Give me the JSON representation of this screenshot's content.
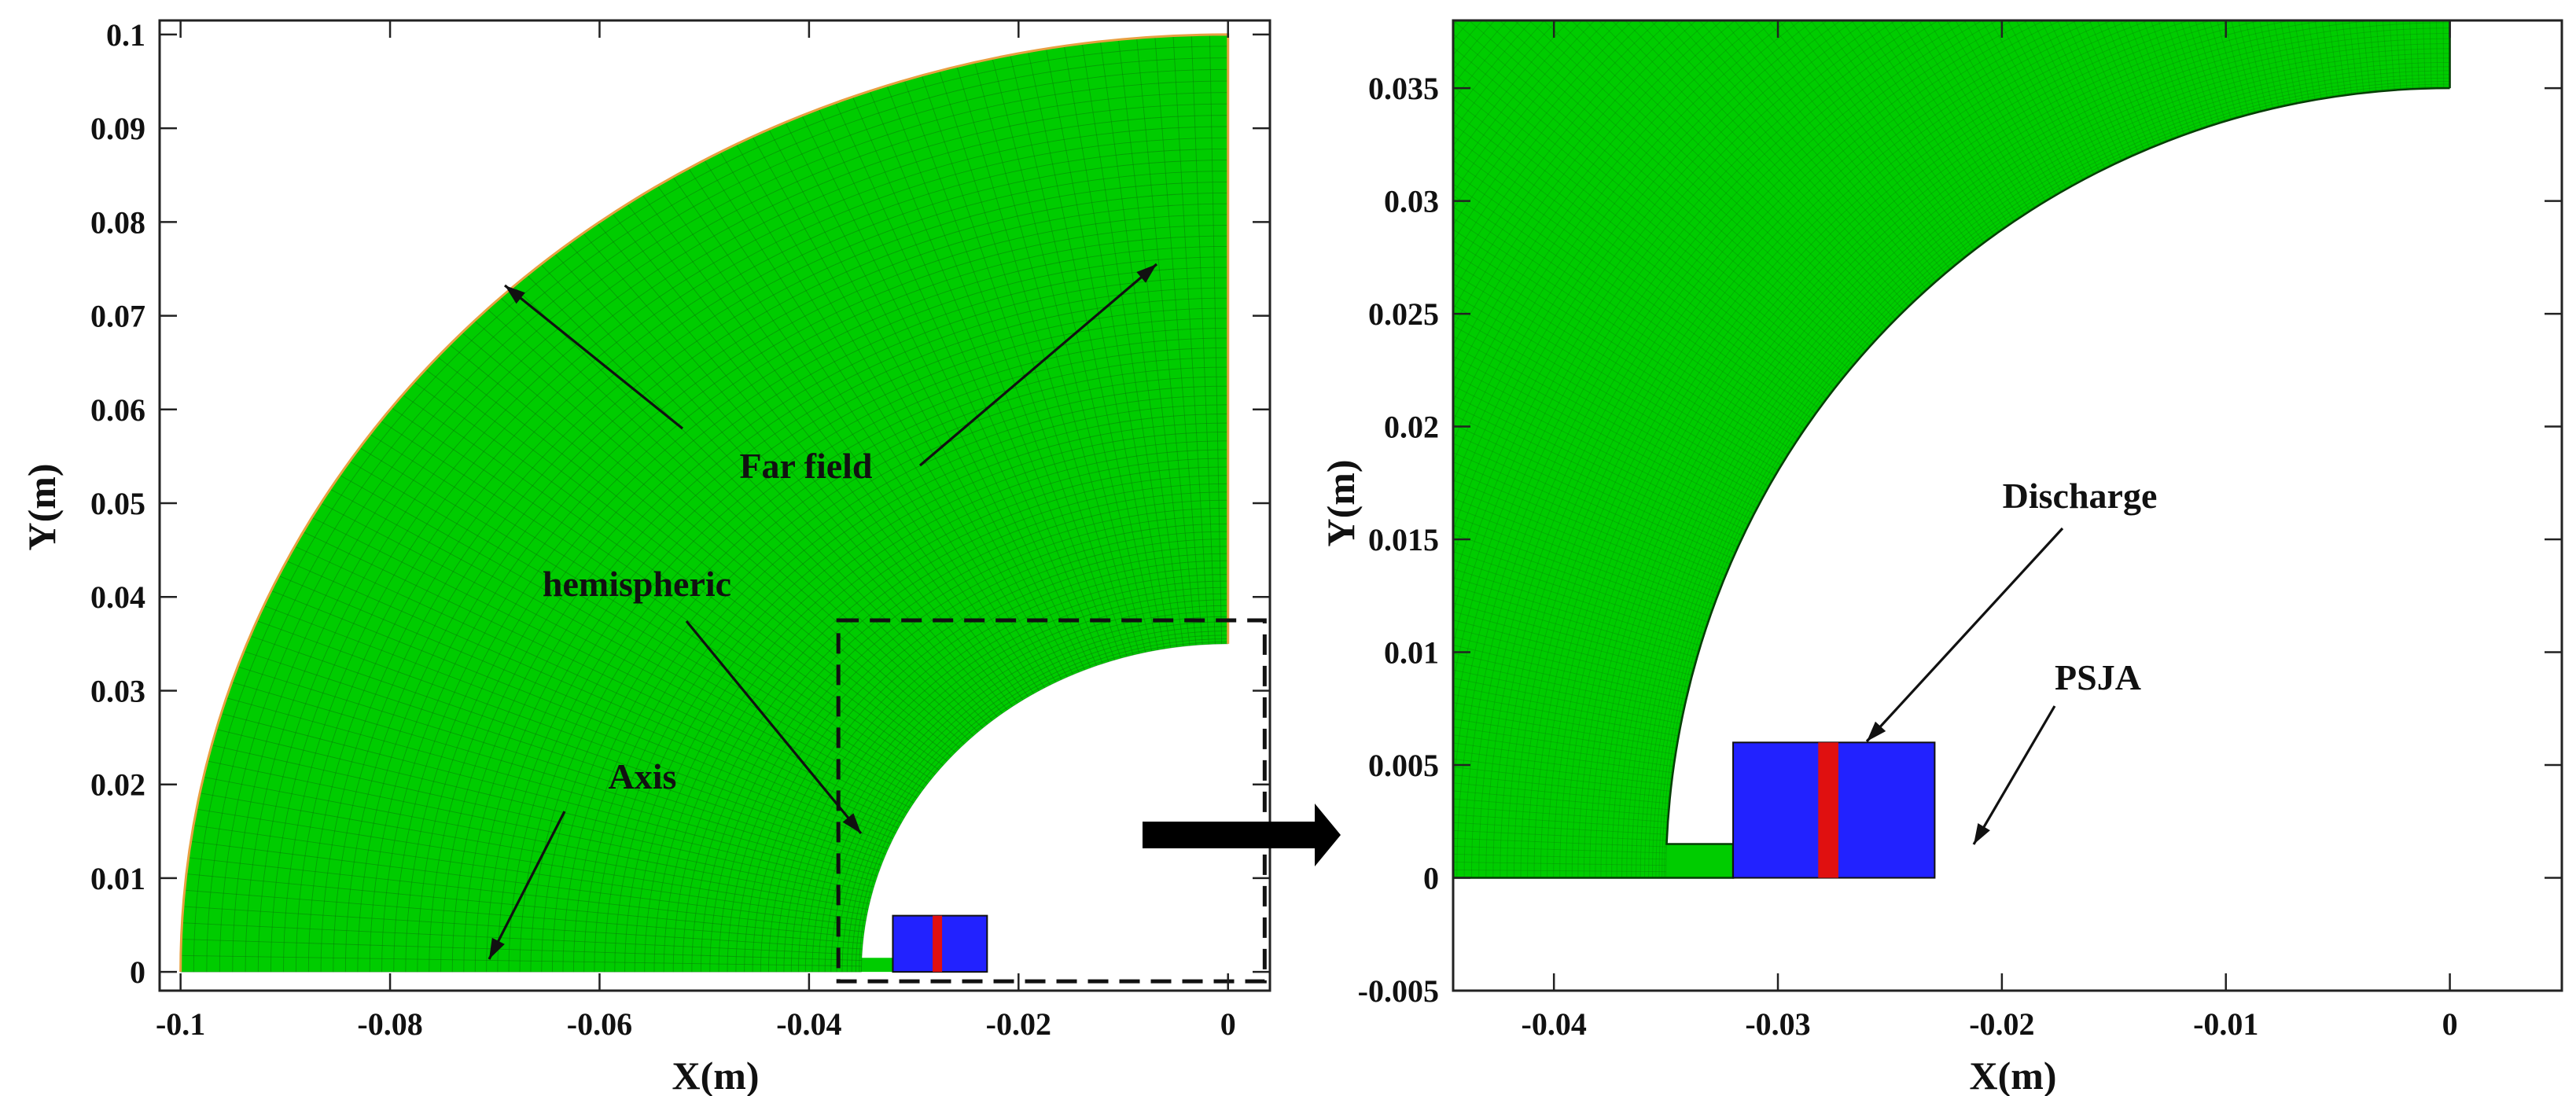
{
  "left_panel": {
    "x_axis": {
      "label": "X(m)",
      "range": [
        -0.102,
        0.004
      ],
      "ticks": [
        -0.1,
        -0.08,
        -0.06,
        -0.04,
        -0.02,
        0
      ],
      "tick_labels": [
        "-0.1",
        "-0.08",
        "-0.06",
        "-0.04",
        "-0.02",
        "0"
      ]
    },
    "y_axis": {
      "label": "Y(m)",
      "range": [
        -0.002,
        0.1015
      ],
      "ticks": [
        0,
        0.01,
        0.02,
        0.03,
        0.04,
        0.05,
        0.06,
        0.07,
        0.08,
        0.09,
        0.1
      ],
      "tick_labels": [
        "0",
        "0.01",
        "0.02",
        "0.03",
        "0.04",
        "0.05",
        "0.06",
        "0.07",
        "0.08",
        "0.09",
        "0.1"
      ]
    },
    "annotations": {
      "far_field": "Far field",
      "hemispheric": "hemispheric",
      "axis": "Axis"
    }
  },
  "right_panel": {
    "x_axis": {
      "label": "X(m)",
      "range": [
        -0.0445,
        0.005
      ],
      "ticks": [
        -0.04,
        -0.03,
        -0.02,
        -0.01,
        0
      ],
      "tick_labels": [
        "-0.04",
        "-0.03",
        "-0.02",
        "-0.01",
        "0"
      ]
    },
    "y_axis": {
      "label": "Y(m)",
      "range": [
        -0.005,
        0.038
      ],
      "ticks": [
        -0.005,
        0,
        0.005,
        0.01,
        0.015,
        0.02,
        0.025,
        0.03,
        0.035
      ],
      "tick_labels": [
        "-0.005",
        "0",
        "0.005",
        "0.01",
        "0.015",
        "0.02",
        "0.025",
        "0.03",
        "0.035"
      ]
    },
    "annotations": {
      "discharge": "Discharge",
      "psja": "PSJA"
    }
  },
  "geometry": {
    "far_field_radius": 0.1,
    "hemisphere_radius": 0.035,
    "cavity_x_range": [
      -0.032,
      -0.023
    ],
    "cavity_height": 0.006,
    "electrode_x_range": [
      -0.0282,
      -0.0273
    ],
    "step_height": 0.0015
  },
  "colors": {
    "mesh": "#00cc00",
    "mesh_line": "#0a7a0a",
    "cavity": "#2222ff",
    "electrode": "#e01010",
    "far_field_edge": "#e8a040"
  }
}
